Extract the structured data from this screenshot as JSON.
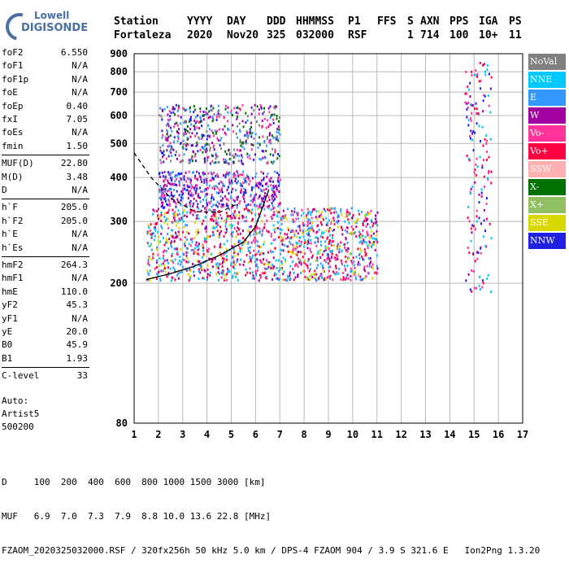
{
  "logo": {
    "line1": "Lowell",
    "line2": "DIGISONDE"
  },
  "header": {
    "row1": [
      "Station",
      "YYYY",
      "DAY",
      "DDD",
      "HHMMSS",
      "P1",
      "FFS",
      "S",
      "AXN",
      "PPS",
      "IGA",
      "PS"
    ],
    "row2": [
      "Fortaleza",
      "2020",
      "Nov20",
      "325",
      "032000",
      "RSF",
      "",
      "1",
      "714",
      "100",
      "10+",
      "11"
    ]
  },
  "params": [
    {
      "key": "foF2",
      "value": "6.550"
    },
    {
      "key": "foF1",
      "value": "N/A"
    },
    {
      "key": "foF1p",
      "value": "N/A"
    },
    {
      "key": "foE",
      "value": "N/A"
    },
    {
      "key": "foEp",
      "value": "0.40"
    },
    {
      "key": "fxI",
      "value": "7.05"
    },
    {
      "key": "foEs",
      "value": "N/A"
    },
    {
      "key": "fmin",
      "value": "1.50"
    },
    {
      "key": "MUF(D)",
      "value": "22.80"
    },
    {
      "key": "M(D)",
      "value": "3.48"
    },
    {
      "key": "D",
      "value": "N/A"
    },
    {
      "key": "h`F",
      "value": "205.0"
    },
    {
      "key": "h`F2",
      "value": "205.0"
    },
    {
      "key": "h`E",
      "value": "N/A"
    },
    {
      "key": "h`Es",
      "value": "N/A"
    },
    {
      "key": "hmF2",
      "value": "264.3"
    },
    {
      "key": "hmF1",
      "value": "N/A"
    },
    {
      "key": "hmE",
      "value": "110.0"
    },
    {
      "key": "yF2",
      "value": "45.3"
    },
    {
      "key": "yF1",
      "value": "N/A"
    },
    {
      "key": "yE",
      "value": "20.0"
    },
    {
      "key": "B0",
      "value": "45.9"
    },
    {
      "key": "B1",
      "value": "1.93"
    },
    {
      "key": "C-level",
      "value": "33"
    }
  ],
  "auto": {
    "line1": "Auto:",
    "line2": "Artist5",
    "line3": "500200"
  },
  "legend": [
    {
      "label": "NoVal",
      "color": "#808080"
    },
    {
      "label": "NNE",
      "color": "#00c8ff"
    },
    {
      "label": "E",
      "color": "#3399ff"
    },
    {
      "label": "W",
      "color": "#a000a0"
    },
    {
      "label": "Vo-",
      "color": "#ff3399"
    },
    {
      "label": "Vo+",
      "color": "#ff0040"
    },
    {
      "label": "SSW",
      "color": "#ffb0b0"
    },
    {
      "label": "X-",
      "color": "#007000"
    },
    {
      "label": "X+",
      "color": "#90c060"
    },
    {
      "label": "SSE",
      "color": "#d8d800"
    },
    {
      "label": "NNW",
      "color": "#2020e0"
    }
  ],
  "footer": {
    "line1": "D     100  200  400  600  800 1000 1500 3000 [km]",
    "line2": "MUF   6.9  7.0  7.3  7.9  8.8 10.0 13.6 22.8 [MHz]",
    "line3": "FZAOM_2020325032000.RSF / 320fx256h 50 kHz 5.0 km / DPS-4 FZAOM 904 / 3.9 S 321.6 E   Ion2Png 1.3.20"
  },
  "chart_data": {
    "type": "scatter",
    "title": "",
    "xlabel": "",
    "ylabel": "",
    "xlim": [
      1,
      17
    ],
    "ylim": [
      80,
      900
    ],
    "x_ticks": [
      1,
      2,
      3,
      4,
      5,
      6,
      7,
      8,
      9,
      10,
      11,
      12,
      13,
      14,
      15,
      16,
      17
    ],
    "y_ticks": [
      80,
      200,
      300,
      400,
      500,
      600,
      700,
      800,
      900
    ],
    "y_scale": "log",
    "grid": true,
    "series": [
      {
        "style": "solid",
        "color": "#000000",
        "points": [
          [
            1.5,
            205
          ],
          [
            2.5,
            213
          ],
          [
            3.5,
            224
          ],
          [
            4.5,
            240
          ],
          [
            5.5,
            262
          ],
          [
            6.0,
            290
          ],
          [
            6.3,
            330
          ],
          [
            6.55,
            370
          ]
        ]
      },
      {
        "style": "dashed",
        "color": "#000000",
        "points": [
          [
            1.0,
            470
          ],
          [
            1.7,
            400
          ],
          [
            2.5,
            350
          ],
          [
            3.5,
            320
          ],
          [
            4.5,
            318
          ],
          [
            5.2,
            335
          ]
        ]
      }
    ],
    "echo_regions": [
      {
        "f": [
          1.5,
          11
        ],
        "h": [
          205,
          330
        ],
        "colors": [
          "#ff0040",
          "#3399ff",
          "#d8d800",
          "#ff3399",
          "#a000a0",
          "#00c8ff"
        ]
      },
      {
        "f": [
          2,
          7
        ],
        "h": [
          330,
          420
        ],
        "colors": [
          "#a000a0",
          "#3399ff",
          "#2020e0",
          "#ff3399"
        ]
      },
      {
        "f": [
          2,
          7
        ],
        "h": [
          440,
          650
        ],
        "colors": [
          "#a000a0",
          "#3399ff",
          "#808080",
          "#2020e0",
          "#ff3399",
          "#007000"
        ]
      },
      {
        "f": [
          14.6,
          15.7
        ],
        "h": [
          190,
          860
        ],
        "colors": [
          "#a000a0",
          "#00c8ff",
          "#ff0040",
          "#ff3399",
          "#2020e0"
        ]
      }
    ]
  }
}
